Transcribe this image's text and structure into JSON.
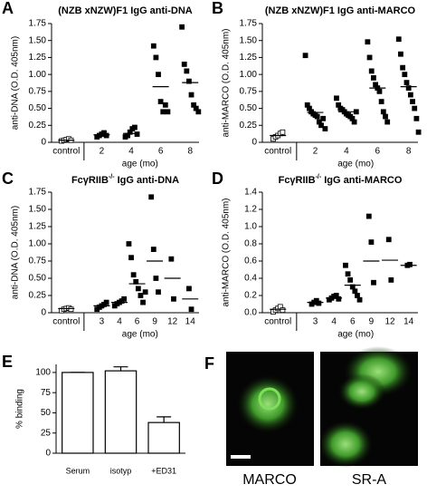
{
  "chart_data": [
    {
      "letter": "A",
      "type": "strip",
      "title": "(NZB xNZW)F1 IgG anti-DNA",
      "ylabel": "anti-DNA (O.D. 405nm)",
      "xlabel": "age (mo)",
      "categories": [
        "control",
        "2",
        "4",
        "6",
        "8"
      ],
      "groups": [
        [
          0.02,
          0.03,
          0.04,
          0.05,
          0.03
        ],
        [
          0.08,
          0.1,
          0.12,
          0.14,
          0.1
        ],
        [
          0.08,
          0.1,
          0.15,
          0.2,
          0.22,
          0.12
        ],
        [
          1.42,
          1.25,
          1.0,
          0.6,
          0.45,
          0.55,
          0.45
        ],
        [
          1.7,
          1.15,
          1.05,
          0.9,
          0.7,
          0.55,
          0.5,
          0.45
        ]
      ],
      "means": [
        0.03,
        0.11,
        0.13,
        0.82,
        0.88
      ],
      "ylim": [
        0,
        1.75
      ],
      "yticks": [
        0,
        0.25,
        {
          "value": 0.5,
          "label": "0.50"
        },
        0.75,
        {
          "value": 1,
          "label": "1.00"
        },
        1.25,
        {
          "value": 1.5,
          "label": "1.50"
        },
        1.75
      ],
      "control_marker": "open",
      "color": "#000000"
    },
    {
      "letter": "B",
      "type": "strip",
      "title": "(NZB xNZW)F1 IgG anti-MARCO",
      "ylabel": "anti-MARCO (O.D. 405nm)",
      "xlabel": "age (mo)",
      "categories": [
        "control",
        "2",
        "4",
        "6",
        "8"
      ],
      "groups": [
        [
          0.05,
          0.08,
          0.1,
          0.13,
          0.15
        ],
        [
          1.28,
          0.55,
          0.5,
          0.45,
          0.42,
          0.4,
          0.38,
          0.3,
          0.25,
          0.35,
          0.2
        ],
        [
          0.65,
          0.55,
          0.5,
          0.48,
          0.45,
          0.42,
          0.4,
          0.38,
          0.35,
          0.3,
          0.45
        ],
        [
          1.48,
          1.25,
          1.05,
          0.95,
          0.85,
          0.8,
          0.75,
          0.6,
          0.45,
          0.38,
          0.3
        ],
        [
          1.52,
          1.3,
          1.1,
          1.0,
          0.88,
          0.8,
          0.7,
          0.6,
          0.5,
          0.35,
          0.15
        ]
      ],
      "means": [
        0.1,
        0.44,
        0.45,
        0.8,
        0.82
      ],
      "ylim": [
        0,
        1.75
      ],
      "yticks": [
        0,
        0.25,
        {
          "value": 0.5,
          "label": "0.50"
        },
        0.75,
        {
          "value": 1,
          "label": "1.00"
        },
        1.25,
        {
          "value": 1.5,
          "label": "1.50"
        },
        1.75
      ],
      "control_marker": "open",
      "color": "#000000"
    },
    {
      "letter": "C",
      "type": "strip",
      "title": [
        "FcγRIIB",
        "-/-",
        " IgG anti-DNA"
      ],
      "ylabel": "anti-DNA (O.D. 405nm)",
      "xlabel": "age (mo)",
      "categories": [
        "control",
        "3",
        "4",
        "6",
        "9",
        "12",
        "14"
      ],
      "groups": [
        [
          0.03,
          0.05,
          0.06,
          0.07,
          0.05
        ],
        [
          0.05,
          0.08,
          0.1,
          0.12,
          0.15
        ],
        [
          0.1,
          0.13,
          0.15,
          0.17,
          0.2
        ],
        [
          1.0,
          0.8,
          0.55,
          0.45,
          0.35,
          0.25,
          0.15,
          0.3
        ],
        [
          1.68,
          0.92,
          0.5,
          0.3
        ],
        [
          0.78,
          0.2
        ],
        [
          0.35,
          0.05
        ]
      ],
      "means": [
        0.06,
        0.1,
        0.15,
        0.42,
        0.75,
        0.5,
        0.2
      ],
      "ylim": [
        0,
        1.75
      ],
      "yticks": [
        0,
        0.25,
        {
          "value": 0.5,
          "label": "0.50"
        },
        0.75,
        {
          "value": 1,
          "label": "1.00"
        },
        1.25,
        {
          "value": 1.5,
          "label": "1.50"
        },
        1.75
      ],
      "control_marker": "open",
      "color": "#000000"
    },
    {
      "letter": "D",
      "type": "strip",
      "title": [
        "FcγRIIB",
        "-/-",
        " IgG anti-MARCO"
      ],
      "ylabel": "anti-MARCO (O.D. 405nm)",
      "xlabel": "age (mo)",
      "categories": [
        "control",
        "3",
        "4",
        "6",
        "9",
        "12",
        "14"
      ],
      "groups": [
        [
          0.01,
          0.03,
          0.05,
          0.07,
          0.03
        ],
        [
          0.1,
          0.12,
          0.14,
          0.11
        ],
        [
          0.15,
          0.17,
          0.19,
          0.2,
          0.16
        ],
        [
          0.55,
          0.45,
          0.38,
          0.3,
          0.25,
          0.2,
          0.15
        ],
        [
          1.12,
          0.82,
          0.35
        ],
        [
          0.85,
          0.38
        ],
        [
          0.55,
          0.56
        ]
      ],
      "means": [
        0.04,
        0.12,
        0.17,
        0.32,
        0.6,
        0.61,
        0.55
      ],
      "ylim": [
        0,
        1.4
      ],
      "yticks": [
        {
          "value": 0,
          "label": "0.0"
        },
        0.2,
        0.4,
        0.6,
        0.8,
        {
          "value": 1,
          "label": "1.0"
        },
        1.2,
        1.4
      ],
      "control_marker": "open",
      "color": "#000000"
    },
    {
      "letter": "E",
      "type": "bar",
      "ylabel": "% binding",
      "categories": [
        "Serum",
        "isotyp",
        "+ED31"
      ],
      "values": [
        100,
        102,
        38
      ],
      "errors": [
        0,
        5,
        7
      ],
      "ylim": [
        0,
        110
      ],
      "yticks": [
        0,
        25,
        50,
        75,
        100
      ],
      "color": "#ffffff"
    }
  ],
  "image_panel": {
    "letter": "F",
    "labels": [
      "MARCO",
      "SR-A"
    ]
  }
}
